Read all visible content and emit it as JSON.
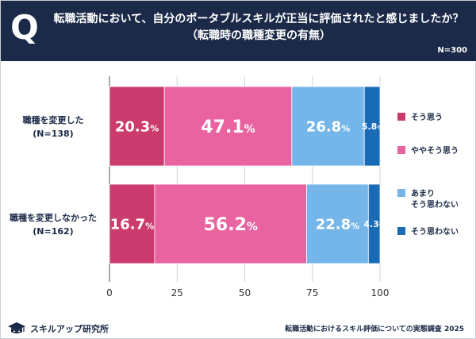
{
  "header": {
    "q_mark": "Q",
    "title_line1": "転職活動において、自分のポータブルスキルが正当に評価されたと感じましたか？",
    "title_line2": "（転職時の職種変更の有無）",
    "n_total": "N=300"
  },
  "colors": {
    "header_bg": "#1b2a48",
    "series": [
      "#cc3b6e",
      "#e8639f",
      "#74b6e9",
      "#1a6bb5"
    ]
  },
  "chart_data": {
    "type": "bar",
    "orientation": "horizontal",
    "stacked": true,
    "categories": [
      {
        "line1": "職種を変更した",
        "line2": "(N=138)"
      },
      {
        "line1": "職種を変更しなかった",
        "line2": "(N=162)"
      }
    ],
    "series": [
      {
        "name": "そう思う",
        "values": [
          20.3,
          16.7
        ]
      },
      {
        "name": "ややそう思う",
        "values": [
          47.1,
          56.2
        ]
      },
      {
        "name": "あまりそう思わない",
        "values": [
          26.8,
          22.8
        ]
      },
      {
        "name": "そう思わない",
        "values": [
          5.8,
          4.3
        ]
      }
    ],
    "legend": [
      {
        "lines": [
          "そう思う"
        ]
      },
      {
        "lines": [
          "ややそう思う"
        ]
      },
      {
        "lines": [
          "あまり",
          "そう思わない"
        ]
      },
      {
        "lines": [
          "そう思わない"
        ]
      }
    ],
    "value_suffix": "%",
    "xlim": [
      0,
      100
    ],
    "xticks": [
      0,
      25,
      50,
      75,
      100
    ],
    "grid": true,
    "legend_position": "right"
  },
  "footer": {
    "brand": "スキルアップ研究所",
    "source": "転職活動におけるスキル評価についての実態調査 2025"
  }
}
